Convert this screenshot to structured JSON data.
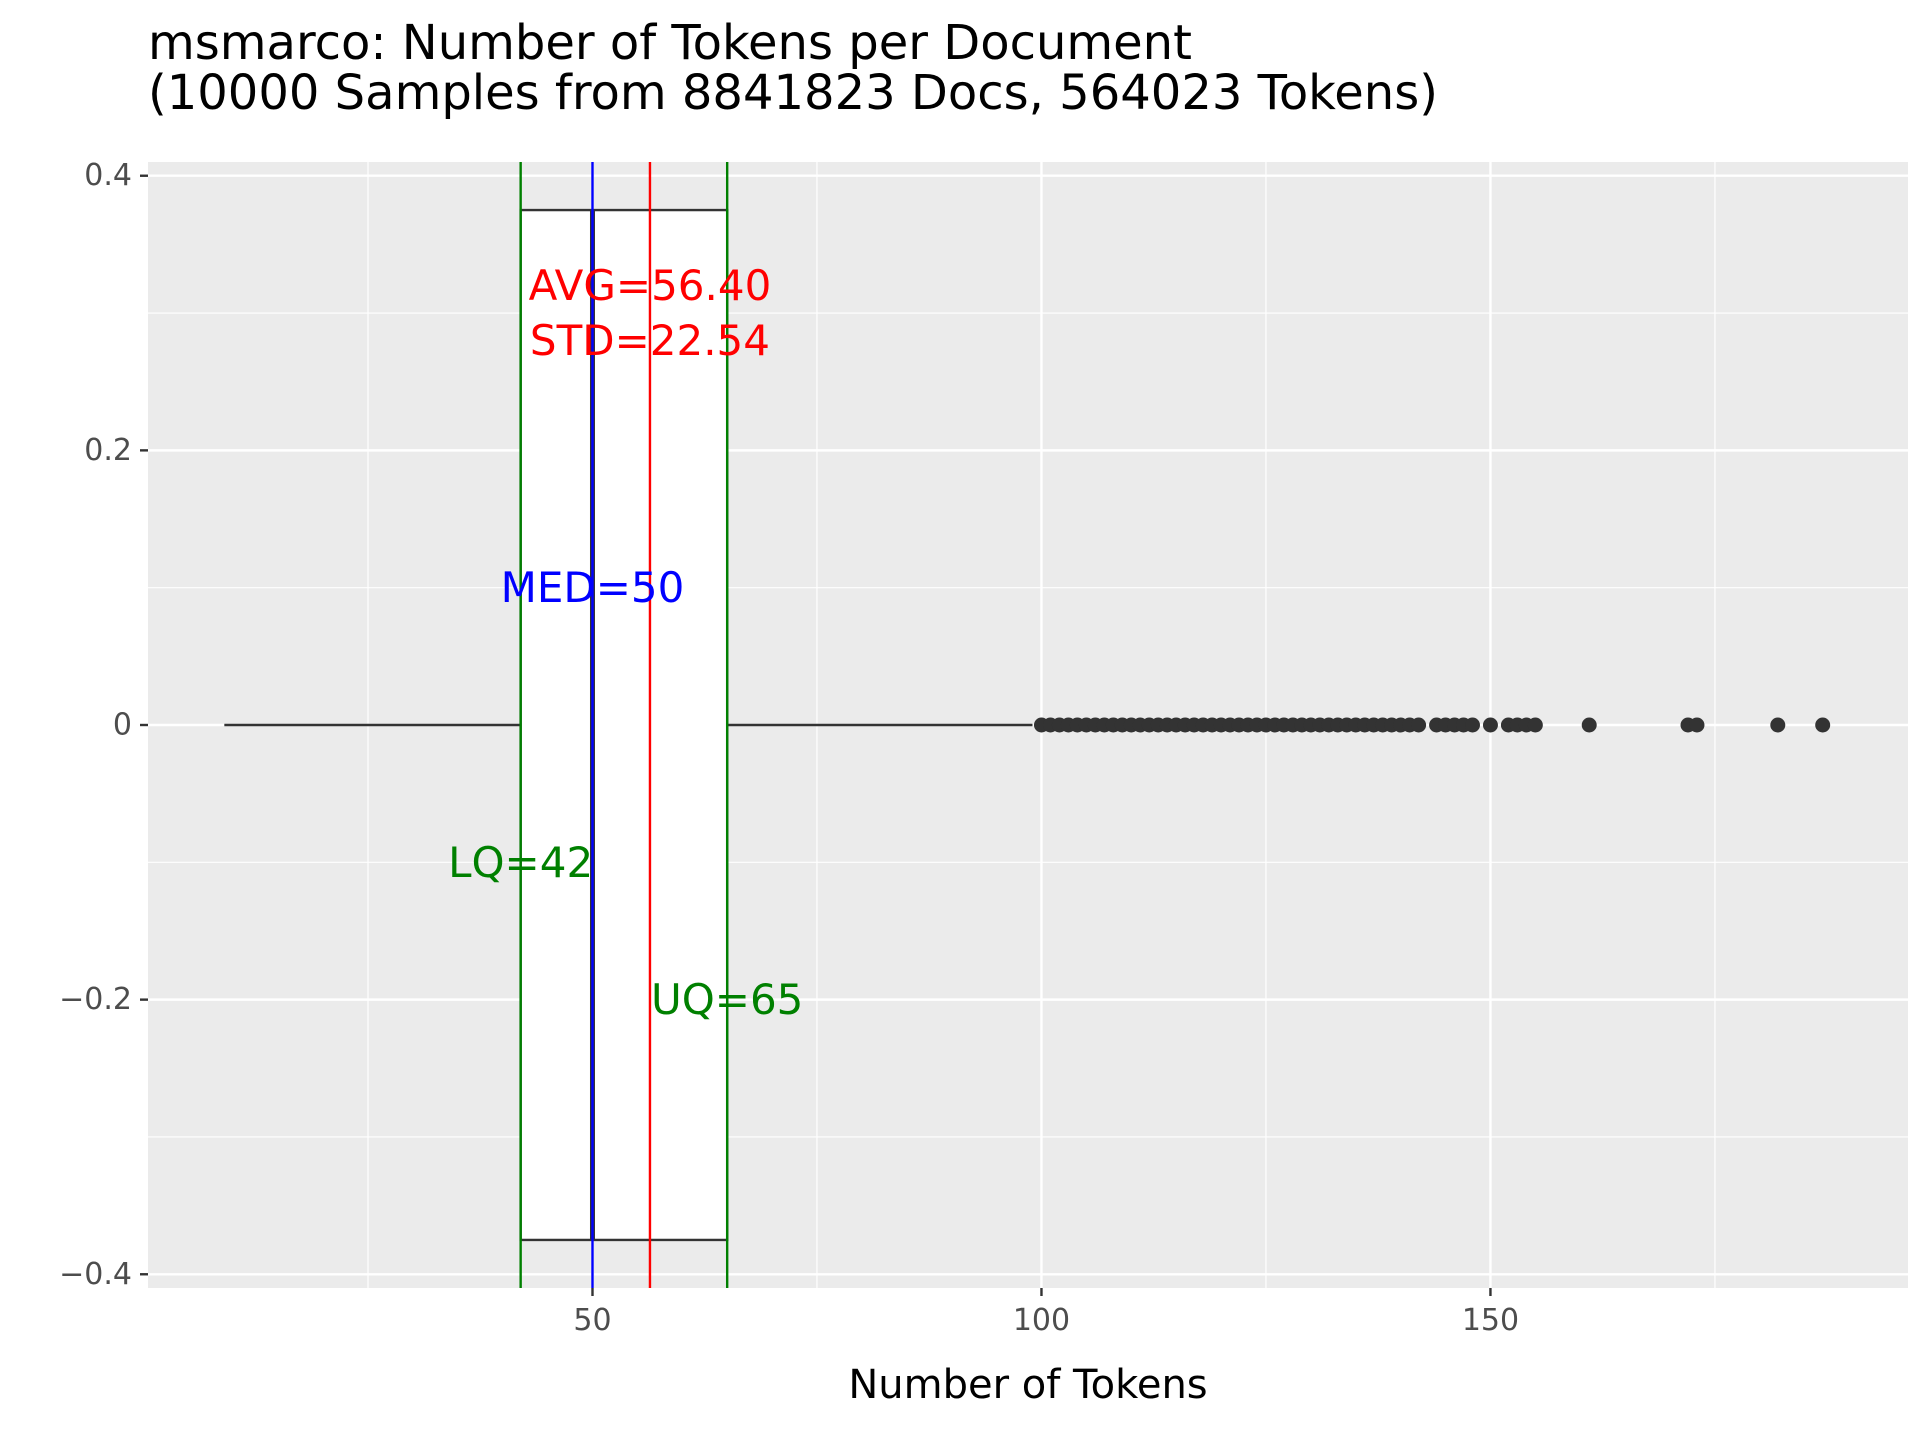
{
  "chart_data": {
    "type": "boxplot",
    "title_lines": [
      "msmarco: Number of Tokens per Document",
      "(10000 Samples from 8841823 Docs, 564023 Tokens)"
    ],
    "xlabel": "Number of Tokens",
    "ylabel": "",
    "xlim": [
      0.5,
      196.5
    ],
    "ylim": [
      -0.41,
      0.41
    ],
    "x_ticks": [
      {
        "value": 50,
        "label": "50"
      },
      {
        "value": 100,
        "label": "100"
      },
      {
        "value": 150,
        "label": "150"
      }
    ],
    "x_minor_ticks": [
      25,
      75,
      125,
      175
    ],
    "y_ticks": [
      {
        "value": 0.4,
        "label": "0.4"
      },
      {
        "value": 0.2,
        "label": "0.2"
      },
      {
        "value": 0,
        "label": "0"
      },
      {
        "value": -0.2,
        "label": "−0.2"
      },
      {
        "value": -0.4,
        "label": "−0.4"
      }
    ],
    "y_minor_ticks": [
      0.3,
      0.1,
      -0.1,
      -0.3
    ],
    "grid": true,
    "box": {
      "lower_whisker": 9,
      "lower_quartile": 42,
      "median": 50,
      "upper_quartile": 65,
      "upper_whisker": 99,
      "y_center": 0,
      "half_width": 0.375
    },
    "outliers": [
      100,
      101,
      102,
      103,
      104,
      105,
      106,
      107,
      108,
      109,
      110,
      111,
      112,
      113,
      114,
      115,
      116,
      117,
      118,
      119,
      120,
      121,
      122,
      123,
      124,
      125,
      126,
      127,
      128,
      129,
      130,
      131,
      132,
      133,
      134,
      135,
      136,
      137,
      138,
      139,
      140,
      141,
      142,
      144,
      145,
      146,
      147,
      148,
      150,
      152,
      153,
      154,
      155,
      161,
      172,
      173,
      182,
      187
    ],
    "reference_lines": [
      {
        "name": "LQ",
        "value": 42,
        "color": "#008000"
      },
      {
        "name": "UQ",
        "value": 65,
        "color": "#008000"
      },
      {
        "name": "MED",
        "value": 50,
        "color": "#0000ff"
      },
      {
        "name": "AVG",
        "value": 56.4,
        "color": "#ff0000"
      }
    ],
    "annotations": [
      {
        "text": "AVG=56.40",
        "x": 56.4,
        "y": 0.32,
        "color": "#ff0000"
      },
      {
        "text": "STD=22.54",
        "x": 56.4,
        "y": 0.28,
        "color": "#ff0000"
      },
      {
        "text": "MED=50",
        "x": 50,
        "y": 0.1,
        "color": "#0000ff"
      },
      {
        "text": "LQ=42",
        "x": 42,
        "y": -0.1,
        "color": "#008000"
      },
      {
        "text": "UQ=65",
        "x": 65,
        "y": -0.2,
        "color": "#008000"
      }
    ],
    "colors": {
      "panel_background": "#ebebeb",
      "grid": "#ffffff",
      "box_fill": "#ffffff",
      "box_line": "#333333",
      "outlier": "#333333",
      "tick_label": "#4d4d4d"
    }
  }
}
